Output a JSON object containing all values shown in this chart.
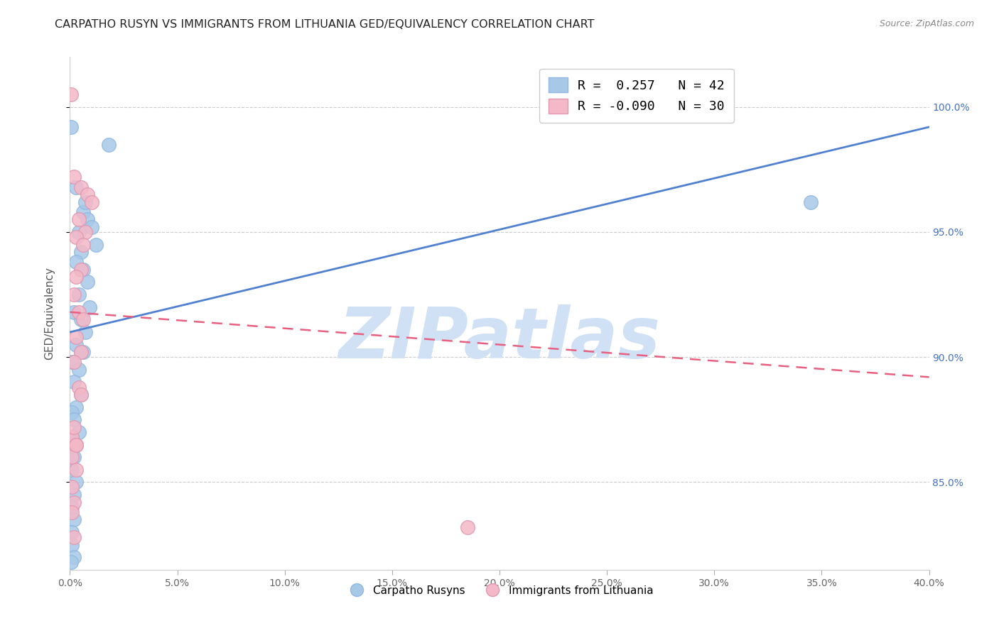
{
  "title": "CARPATHO RUSYN VS IMMIGRANTS FROM LITHUANIA GED/EQUIVALENCY CORRELATION CHART",
  "source": "Source: ZipAtlas.com",
  "ylabel": "GED/Equivalency",
  "x_min": 0.0,
  "x_max": 40.0,
  "y_min": 81.5,
  "y_max": 102.0,
  "y_ticks": [
    85.0,
    90.0,
    95.0,
    100.0
  ],
  "y_tick_labels": [
    "85.0%",
    "90.0%",
    "95.0%",
    "100.0%"
  ],
  "legend_R_blue": "0.257",
  "legend_N_blue": "42",
  "legend_R_pink": "-0.090",
  "legend_N_pink": "30",
  "blue_color": "#A8C8E8",
  "pink_color": "#F4B8C8",
  "blue_line_color": "#5080D0",
  "pink_line_color": "#E86080",
  "watermark": "ZIPatlas",
  "watermark_color": "#D0E0F5",
  "blue_line_y0": 91.0,
  "blue_line_y1": 99.2,
  "pink_line_y0": 91.8,
  "pink_line_y1": 89.2,
  "blue_x": [
    0.05,
    1.8,
    0.3,
    0.6,
    0.8,
    1.0,
    0.4,
    0.7,
    1.2,
    0.5,
    0.3,
    0.6,
    0.8,
    0.4,
    0.9,
    0.2,
    0.5,
    0.7,
    0.3,
    0.6,
    0.1,
    0.4,
    0.2,
    0.5,
    0.3,
    0.1,
    0.2,
    0.4,
    0.1,
    0.3,
    0.2,
    0.1,
    0.3,
    0.2,
    0.1,
    0.2,
    0.1,
    0.5,
    0.1,
    0.2,
    0.05,
    34.5
  ],
  "blue_y": [
    99.2,
    98.5,
    96.8,
    95.8,
    95.5,
    95.2,
    95.0,
    96.2,
    94.5,
    94.2,
    93.8,
    93.5,
    93.0,
    92.5,
    92.0,
    91.8,
    91.5,
    91.0,
    90.5,
    90.2,
    89.8,
    89.5,
    89.0,
    88.5,
    88.0,
    87.8,
    87.5,
    87.0,
    86.8,
    86.5,
    86.0,
    85.5,
    85.0,
    84.5,
    84.0,
    83.5,
    83.0,
    90.2,
    82.5,
    82.0,
    81.8,
    96.2
  ],
  "pink_x": [
    0.05,
    0.2,
    0.5,
    0.8,
    0.4,
    0.7,
    0.3,
    0.6,
    1.0,
    0.5,
    0.3,
    0.2,
    0.4,
    0.6,
    0.3,
    0.5,
    0.2,
    0.4,
    0.1,
    0.3,
    0.5,
    0.2,
    0.1,
    0.3,
    0.1,
    0.2,
    0.1,
    18.5,
    0.3,
    0.2
  ],
  "pink_y": [
    100.5,
    97.2,
    96.8,
    96.5,
    95.5,
    95.0,
    94.8,
    94.5,
    96.2,
    93.5,
    93.2,
    92.5,
    91.8,
    91.5,
    90.8,
    90.2,
    89.8,
    88.8,
    86.8,
    86.5,
    88.5,
    87.2,
    86.0,
    85.5,
    84.8,
    84.2,
    83.8,
    83.2,
    86.5,
    82.8
  ]
}
